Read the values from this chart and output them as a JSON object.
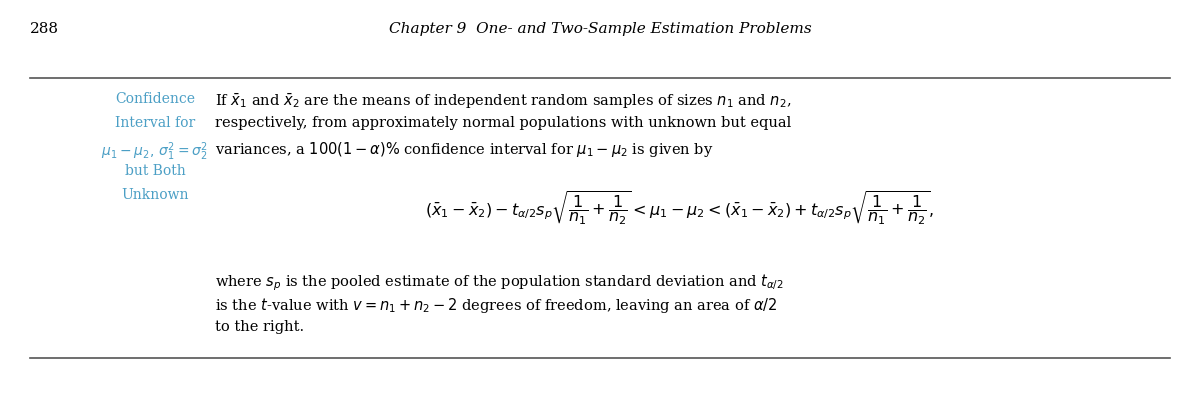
{
  "page_number": "288",
  "chapter_header": "Chapter 9  One- and Two-Sample Estimation Problems",
  "background_color": "#ffffff",
  "text_color": "#000000",
  "blue_color": "#4b9fc5",
  "left_label_lines": [
    "Confidence",
    "Interval for",
    "$\\mu_1 - \\mu_2,\\, \\sigma_1^2 = \\sigma_2^2$",
    "but Both",
    "Unknown"
  ],
  "para1": "If $\\bar{x}_1$ and $\\bar{x}_2$ are the means of independent random samples of sizes $n_1$ and $n_2$,",
  "para2": "respectively, from approximately normal populations with unknown but equal",
  "para3": "variances, a $100(1 - \\alpha)\\%$ confidence interval for $\\mu_1 - \\mu_2$ is given by",
  "formula": "$(\\bar{x}_1 - \\bar{x}_2) - t_{\\alpha/2}s_p\\sqrt{\\dfrac{1}{n_1} + \\dfrac{1}{n_2}} < \\mu_1 - \\mu_2 < (\\bar{x}_1 - \\bar{x}_2) + t_{\\alpha/2}s_p\\sqrt{\\dfrac{1}{n_1} + \\dfrac{1}{n_2}},$",
  "footer1": "where $s_p$ is the pooled estimate of the population standard deviation and $t_{\\alpha/2}$",
  "footer2": "is the $t$-value with $v = n_1 + n_2 - 2$ degrees of freedom, leaving an area of $\\alpha/2$",
  "footer3": "to the right.",
  "rule_color": "#555555",
  "rule_lw": 1.2
}
